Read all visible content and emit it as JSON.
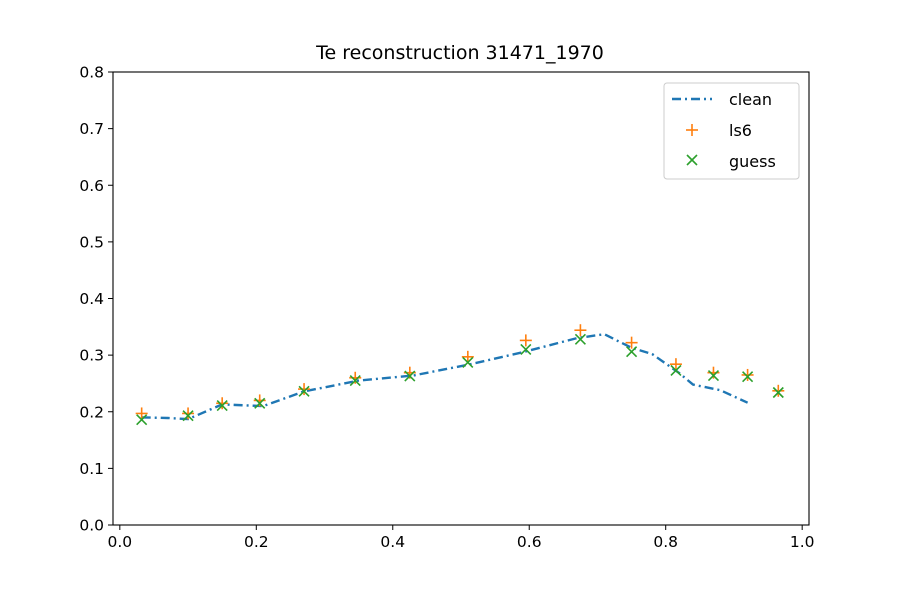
{
  "colors": {
    "clean": "#1f77b4",
    "ls6": "#ff7f0e",
    "guess": "#2ca02c"
  },
  "chart_data": {
    "type": "line",
    "title": "Te reconstruction 31471_1970",
    "xlabel": "",
    "ylabel": "",
    "xlim": [
      -0.01,
      1.01
    ],
    "ylim": [
      0.0,
      0.8
    ],
    "x_ticks": [
      0.0,
      0.2,
      0.4,
      0.6,
      0.8,
      1.0
    ],
    "x_tick_labels": [
      "0.0",
      "0.2",
      "0.4",
      "0.6",
      "0.8",
      "1.0"
    ],
    "y_ticks": [
      0.0,
      0.1,
      0.2,
      0.3,
      0.4,
      0.5,
      0.6,
      0.7,
      0.8
    ],
    "y_tick_labels": [
      "0.0",
      "0.1",
      "0.2",
      "0.3",
      "0.4",
      "0.5",
      "0.6",
      "0.7",
      "0.8"
    ],
    "grid": false,
    "legend_position": "top-right",
    "series": [
      {
        "name": "clean",
        "style": "dash-dot line",
        "x": [
          0.032,
          0.07,
          0.1,
          0.15,
          0.21,
          0.27,
          0.35,
          0.43,
          0.51,
          0.59,
          0.67,
          0.71,
          0.75,
          0.78,
          0.82,
          0.84,
          0.88,
          0.92
        ],
        "y": [
          0.19,
          0.189,
          0.187,
          0.213,
          0.21,
          0.236,
          0.255,
          0.264,
          0.283,
          0.305,
          0.33,
          0.337,
          0.313,
          0.302,
          0.268,
          0.248,
          0.238,
          0.216
        ]
      },
      {
        "name": "ls6",
        "marker": "plus",
        "x": [
          0.032,
          0.1,
          0.15,
          0.205,
          0.27,
          0.345,
          0.425,
          0.51,
          0.595,
          0.675,
          0.75,
          0.815,
          0.87,
          0.92,
          0.965
        ],
        "y": [
          0.197,
          0.197,
          0.215,
          0.22,
          0.24,
          0.26,
          0.269,
          0.297,
          0.326,
          0.344,
          0.322,
          0.284,
          0.269,
          0.265,
          0.237
        ]
      },
      {
        "name": "guess",
        "marker": "x",
        "x": [
          0.032,
          0.1,
          0.15,
          0.205,
          0.27,
          0.345,
          0.425,
          0.51,
          0.595,
          0.675,
          0.75,
          0.815,
          0.87,
          0.92,
          0.965
        ],
        "y": [
          0.186,
          0.193,
          0.211,
          0.215,
          0.236,
          0.255,
          0.263,
          0.287,
          0.31,
          0.328,
          0.306,
          0.273,
          0.264,
          0.262,
          0.234
        ]
      }
    ]
  }
}
